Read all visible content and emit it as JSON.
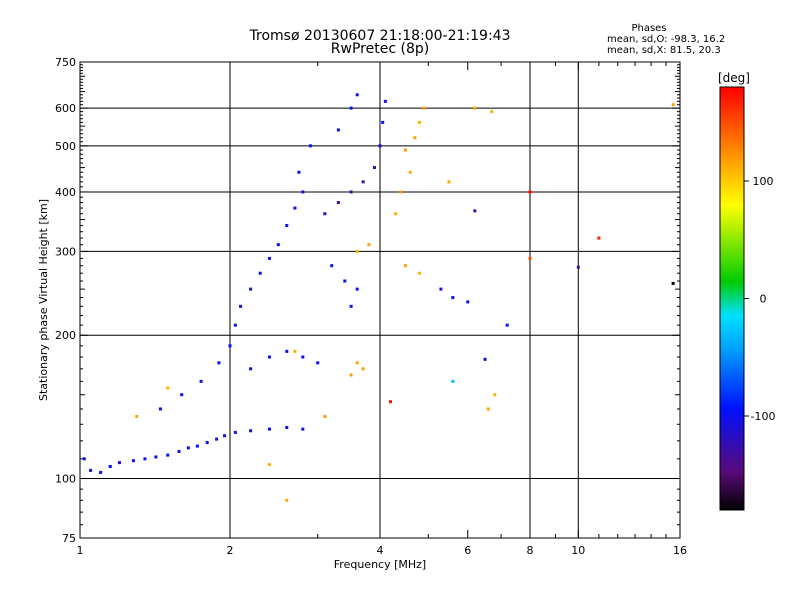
{
  "header": {
    "title_line1": "Tromsø 20130607 21:18:00-21:19:43",
    "title_line2": "RwPretec (8p)"
  },
  "stats": {
    "title": "Phases",
    "line1": "mean, sd,O: -98.3, 16.2",
    "line2": "mean, sd,X:  81.5, 20.3"
  },
  "colorbar": {
    "unit": "[deg]",
    "ticks": [
      {
        "label": "100",
        "value": 100
      },
      {
        "label": "0",
        "value": 0
      },
      {
        "label": "-100",
        "value": -100
      }
    ],
    "range": [
      -180,
      180
    ],
    "colors": [
      "#000000",
      "#5a0a78",
      "#0010ff",
      "#00e0ff",
      "#00cc00",
      "#ffff00",
      "#ff8000",
      "#ff0000"
    ]
  },
  "chart_data": {
    "type": "scatter",
    "title": "Tromsø 20130607 21:18:00-21:19:43",
    "subtitle": "RwPretec (8p)",
    "xlabel": "Frequency [MHz]",
    "ylabel": "Stationary phase Virtual Height [km]",
    "xscale": "log",
    "yscale": "log",
    "xlim": [
      1,
      16
    ],
    "ylim": [
      75,
      750
    ],
    "xticks": [
      {
        "label": "1",
        "value": 1
      },
      {
        "label": "2",
        "value": 2
      },
      {
        "label": "4",
        "value": 4
      },
      {
        "label": "6",
        "value": 6
      },
      {
        "label": "8",
        "value": 8
      },
      {
        "label": "10",
        "value": 10
      },
      {
        "label": "16",
        "value": 16
      }
    ],
    "yticks": [
      {
        "label": "75",
        "value": 75
      },
      {
        "label": "100",
        "value": 100
      },
      {
        "label": "200",
        "value": 200
      },
      {
        "label": "300",
        "value": 300
      },
      {
        "label": "400",
        "value": 400
      },
      {
        "label": "500",
        "value": 500
      },
      {
        "label": "600",
        "value": 600
      },
      {
        "label": "750",
        "value": 750
      }
    ],
    "grid_x": [
      2,
      4,
      8,
      10
    ],
    "grid_y": [
      100,
      200,
      300,
      400,
      500,
      600
    ],
    "color_value": "phase (deg)",
    "series": [
      {
        "values": [
          [
            1.02,
            110,
            -100
          ],
          [
            1.05,
            104,
            -105
          ],
          [
            1.1,
            103,
            -95
          ],
          [
            1.15,
            106,
            -100
          ],
          [
            1.2,
            108,
            -110
          ],
          [
            1.28,
            109,
            -98
          ],
          [
            1.35,
            110,
            -102
          ],
          [
            1.42,
            111,
            -100
          ],
          [
            1.5,
            112,
            -96
          ],
          [
            1.58,
            114,
            -104
          ],
          [
            1.65,
            116,
            -100
          ],
          [
            1.72,
            117,
            -98
          ],
          [
            1.8,
            119,
            -100
          ],
          [
            1.88,
            121,
            -105
          ],
          [
            1.95,
            123,
            -100
          ],
          [
            2.05,
            125,
            -98
          ],
          [
            2.2,
            126,
            -102
          ],
          [
            2.4,
            127,
            -100
          ],
          [
            2.6,
            128,
            -104
          ],
          [
            2.8,
            127,
            -100
          ],
          [
            1.45,
            140,
            -100
          ],
          [
            1.6,
            150,
            -98
          ],
          [
            1.75,
            160,
            -102
          ],
          [
            1.9,
            175,
            -100
          ],
          [
            2.0,
            190,
            -95
          ],
          [
            2.05,
            210,
            -100
          ],
          [
            2.1,
            230,
            -104
          ],
          [
            2.2,
            250,
            -100
          ],
          [
            2.3,
            270,
            -98
          ],
          [
            2.4,
            290,
            -102
          ],
          [
            2.5,
            310,
            -100
          ],
          [
            2.6,
            340,
            -96
          ],
          [
            2.7,
            370,
            -100
          ],
          [
            2.8,
            400,
            -104
          ],
          [
            2.75,
            440,
            -100
          ],
          [
            2.9,
            500,
            -98
          ],
          [
            2.2,
            170,
            -100
          ],
          [
            2.4,
            180,
            -102
          ],
          [
            2.6,
            185,
            -100
          ],
          [
            2.8,
            180,
            -98
          ],
          [
            3.0,
            175,
            -100
          ],
          [
            3.1,
            360,
            -110
          ],
          [
            3.3,
            380,
            -130
          ],
          [
            3.5,
            400,
            -140
          ],
          [
            3.7,
            420,
            -130
          ],
          [
            3.9,
            450,
            -120
          ],
          [
            4.0,
            500,
            -110
          ],
          [
            4.05,
            560,
            -100
          ],
          [
            4.1,
            620,
            -105
          ],
          [
            3.3,
            540,
            -100
          ],
          [
            3.5,
            600,
            -98
          ],
          [
            3.6,
            640,
            -102
          ],
          [
            3.2,
            280,
            -100
          ],
          [
            3.4,
            260,
            -102
          ],
          [
            3.6,
            250,
            -98
          ],
          [
            3.5,
            230,
            -100
          ],
          [
            4.5,
            490,
            120
          ],
          [
            4.7,
            520,
            115
          ],
          [
            4.8,
            560,
            110
          ],
          [
            4.9,
            600,
            118
          ],
          [
            4.6,
            440,
            115
          ],
          [
            4.4,
            400,
            120
          ],
          [
            4.3,
            360,
            112
          ],
          [
            3.6,
            300,
            110
          ],
          [
            3.8,
            310,
            118
          ],
          [
            4.5,
            280,
            115
          ],
          [
            4.8,
            270,
            110
          ],
          [
            3.5,
            165,
            120
          ],
          [
            3.7,
            170,
            118
          ],
          [
            3.6,
            175,
            115
          ],
          [
            1.5,
            155,
            110
          ],
          [
            1.3,
            135,
            115
          ],
          [
            2.7,
            185,
            112
          ],
          [
            3.1,
            135,
            118
          ],
          [
            2.4,
            107,
            110
          ],
          [
            2.6,
            90,
            112
          ],
          [
            5.5,
            420,
            115
          ],
          [
            6.7,
            590,
            110
          ],
          [
            6.2,
            600,
            112
          ],
          [
            15.5,
            610,
            118
          ],
          [
            5.3,
            250,
            -110
          ],
          [
            5.6,
            240,
            -100
          ],
          [
            6.2,
            365,
            -110
          ],
          [
            6.0,
            235,
            -100
          ],
          [
            7.2,
            210,
            -100
          ],
          [
            6.5,
            178,
            -100
          ],
          [
            10.0,
            278,
            -130
          ],
          [
            15.5,
            257,
            -180
          ],
          [
            4.2,
            145,
            175
          ],
          [
            8.0,
            400,
            175
          ],
          [
            11.0,
            320,
            170
          ],
          [
            8.0,
            290,
            150
          ],
          [
            5.6,
            160,
            -30
          ],
          [
            6.6,
            140,
            115
          ],
          [
            6.8,
            150,
            110
          ]
        ]
      }
    ]
  }
}
